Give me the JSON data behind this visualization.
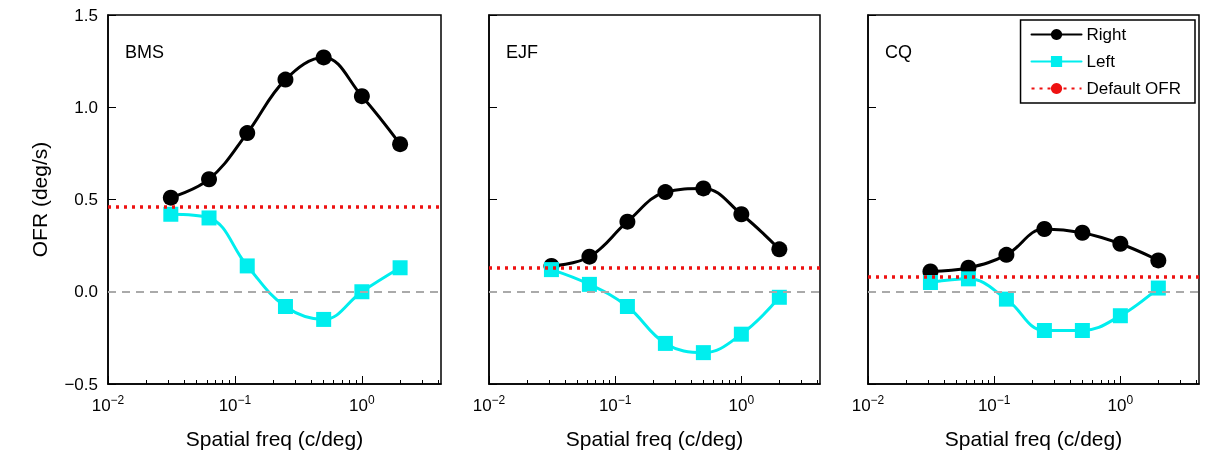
{
  "chart_data": [
    {
      "type": "line",
      "title": "BMS",
      "xlabel": "Spatial freq (c/deg)",
      "ylabel": "OFR (deg/s)",
      "log": "x",
      "grid": false,
      "legend": false,
      "x": [
        0.03125,
        0.0625,
        0.125,
        0.25,
        0.5,
        1,
        2
      ],
      "xlim": [
        0.01,
        4.2
      ],
      "xticks": [
        {
          "value": 0.01,
          "label": "10$^{−2}$"
        },
        {
          "value": 0.1,
          "label": "10$^{−1}$"
        },
        {
          "value": 1,
          "label": "10$^{0}$"
        }
      ],
      "ylim": [
        -0.5,
        1.5
      ],
      "yticks": [
        {
          "value": -0.5,
          "label": "−0.5"
        },
        {
          "value": 0,
          "label": "0.0"
        },
        {
          "value": 0.5,
          "label": "0.5"
        },
        {
          "value": 1,
          "label": "1.0"
        },
        {
          "value": 1.5,
          "label": "1.5"
        }
      ],
      "series": [
        {
          "color": "#000000",
          "marker": "circle",
          "values": [
            0.51,
            0.61,
            0.86,
            1.15,
            1.27,
            1.06,
            0.8
          ]
        },
        {
          "color": "#00eeee",
          "marker": "square",
          "values": [
            0.42,
            0.4,
            0.14,
            -0.08,
            -0.15,
            0,
            0.13
          ]
        }
      ],
      "ref_lines": [
        {
          "axis": "y",
          "value": 0,
          "color": "#aaaaaa",
          "line_style": "dashed"
        },
        {
          "axis": "y",
          "value": 0.46,
          "color": "#ee1111",
          "line_style": "dotted"
        }
      ]
    },
    {
      "type": "line",
      "title": "EJF",
      "xlabel": "Spatial freq (c/deg)",
      "log": "x",
      "grid": false,
      "legend": false,
      "tick_labels": "x",
      "x": [
        0.03125,
        0.0625,
        0.125,
        0.25,
        0.5,
        1,
        2
      ],
      "xlim": [
        0.01,
        4.2
      ],
      "xticks": [
        {
          "value": 0.01,
          "label": "10$^{−2}$"
        },
        {
          "value": 0.1,
          "label": "10$^{−1}$"
        },
        {
          "value": 1,
          "label": "10$^{0}$"
        }
      ],
      "ylim": [
        -0.5,
        1.5
      ],
      "yticks": [
        -0.5,
        0,
        0.5,
        1,
        1.5
      ],
      "series": [
        {
          "color": "#000000",
          "marker": "circle",
          "values": [
            0.14,
            0.19,
            0.38,
            0.54,
            0.56,
            0.42,
            0.23
          ]
        },
        {
          "color": "#00eeee",
          "marker": "square",
          "values": [
            0.12,
            0.04,
            -0.08,
            -0.28,
            -0.33,
            -0.23,
            -0.03
          ]
        }
      ],
      "ref_lines": [
        {
          "axis": "y",
          "value": 0,
          "color": "#aaaaaa",
          "line_style": "dashed"
        },
        {
          "axis": "y",
          "value": 0.13,
          "color": "#ee1111",
          "line_style": "dotted"
        }
      ]
    },
    {
      "type": "line",
      "title": "CQ",
      "xlabel": "Spatial freq (c/deg)",
      "log": "x",
      "grid": false,
      "legend": "top right",
      "tick_labels": "x",
      "x": [
        0.03125,
        0.0625,
        0.125,
        0.25,
        0.5,
        1,
        2
      ],
      "xlim": [
        0.01,
        4.2
      ],
      "xticks": [
        {
          "value": 0.01,
          "label": "10$^{−2}$"
        },
        {
          "value": 0.1,
          "label": "10$^{−1}$"
        },
        {
          "value": 1,
          "label": "10$^{0}$"
        }
      ],
      "ylim": [
        -0.5,
        1.5
      ],
      "yticks": [
        -0.5,
        0,
        0.5,
        1,
        1.5
      ],
      "series": [
        {
          "name": "Right",
          "color": "#000000",
          "marker": "circle",
          "values": [
            0.11,
            0.13,
            0.2,
            0.34,
            0.32,
            0.26,
            0.17
          ]
        },
        {
          "name": "Left",
          "color": "#00eeee",
          "marker": "square",
          "values": [
            0.05,
            0.07,
            -0.04,
            -0.21,
            -0.21,
            -0.13,
            0.02
          ]
        }
      ],
      "ref_lines": [
        {
          "axis": "y",
          "value": 0,
          "color": "#aaaaaa",
          "line_style": "dashed"
        },
        {
          "axis": "y",
          "value": 0.08,
          "color": "#ee1111",
          "line_style": "dotted",
          "label": "Default OFR"
        }
      ]
    }
  ]
}
